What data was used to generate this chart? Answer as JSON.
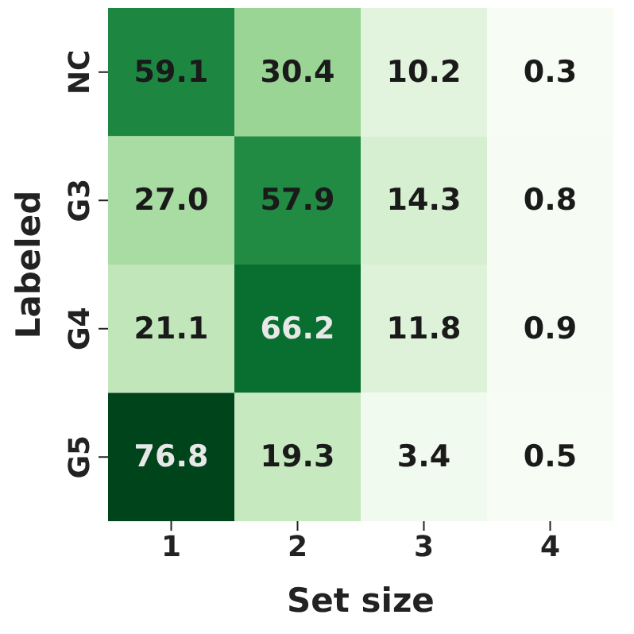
{
  "chart_data": {
    "type": "heatmap",
    "xlabel": "Set size",
    "ylabel": "Labeled",
    "categories": [
      "1",
      "2",
      "3",
      "4"
    ],
    "y_categories": [
      "NC",
      "G3",
      "G4",
      "G5"
    ],
    "cells": [
      [
        59.1,
        30.4,
        10.2,
        0.3
      ],
      [
        27.0,
        57.9,
        14.3,
        0.8
      ],
      [
        21.1,
        66.2,
        11.8,
        0.9
      ],
      [
        76.8,
        19.3,
        3.4,
        0.5
      ]
    ],
    "cell_labels": [
      [
        "59.1",
        "30.4",
        "10.2",
        "0.3"
      ],
      [
        "27.0",
        "57.9",
        "14.3",
        "0.8"
      ],
      [
        "21.1",
        "66.2",
        "11.8",
        "0.9"
      ],
      [
        "76.8",
        "19.3",
        "3.4",
        "0.5"
      ]
    ],
    "data_labels": true
  }
}
